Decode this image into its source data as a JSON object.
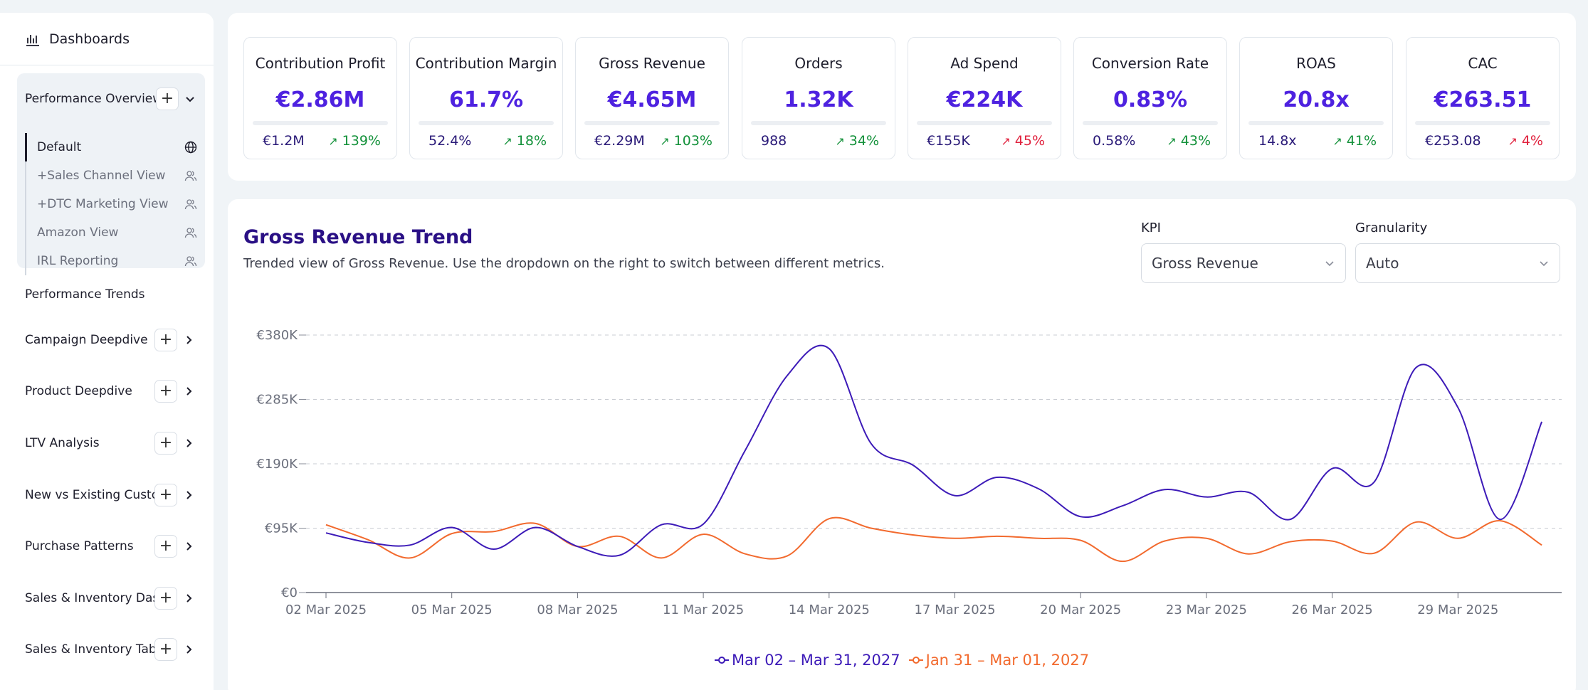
{
  "sidebar": {
    "title": "Dashboards",
    "group": {
      "label": "Performance Overview",
      "items": [
        {
          "label": "Default",
          "icon": "globe-icon"
        },
        {
          "label": "+Sales Channel View",
          "icon": "users-icon"
        },
        {
          "label": "+DTC Marketing View",
          "icon": "users-icon"
        },
        {
          "label": "Amazon View",
          "icon": "users-icon"
        },
        {
          "label": "IRL Reporting",
          "icon": "users-icon"
        }
      ]
    },
    "performance_trends": "Performance Trends",
    "nav": [
      {
        "label": "Campaign Deepdive"
      },
      {
        "label": "Product Deepdive"
      },
      {
        "label": "LTV Analysis"
      },
      {
        "label": "New vs Existing Customers"
      },
      {
        "label": "Purchase Patterns"
      },
      {
        "label": "Sales & Inventory Dashboard"
      },
      {
        "label": "Sales & Inventory Table"
      }
    ]
  },
  "kpis": [
    {
      "name": "Contribution Profit",
      "value": "€2.86M",
      "prev": "€1.2M",
      "change": "139%",
      "status": "good"
    },
    {
      "name": "Contribution Margin",
      "value": "61.7%",
      "prev": "52.4%",
      "change": "18%",
      "status": "good"
    },
    {
      "name": "Gross Revenue",
      "value": "€4.65M",
      "prev": "€2.29M",
      "change": "103%",
      "status": "good"
    },
    {
      "name": "Orders",
      "value": "1.32K",
      "prev": "988",
      "change": "34%",
      "status": "good"
    },
    {
      "name": "Ad Spend",
      "value": "€224K",
      "prev": "€155K",
      "change": "45%",
      "status": "bad"
    },
    {
      "name": "Conversion Rate",
      "value": "0.83%",
      "prev": "0.58%",
      "change": "43%",
      "status": "good"
    },
    {
      "name": "ROAS",
      "value": "20.8x",
      "prev": "14.8x",
      "change": "41%",
      "status": "good"
    },
    {
      "name": "CAC",
      "value": "€263.51",
      "prev": "€253.08",
      "change": "4%",
      "status": "bad"
    }
  ],
  "chart_panel": {
    "title": "Gross Revenue Trend",
    "subtitle": "Trended view of Gross Revenue. Use the dropdown on the right to switch between different metrics.",
    "kpi_label": "KPI",
    "kpi_value": "Gross Revenue",
    "granularity_label": "Granularity",
    "granularity_value": "Auto"
  },
  "colors": {
    "accent": "#4e22e0",
    "current_series": "#3d1bb8",
    "previous_series": "#f26a2e",
    "good": "#13913a",
    "bad": "#e0213d"
  },
  "chart_data": {
    "type": "line",
    "title": "Gross Revenue Trend",
    "ylim": [
      0,
      380000
    ],
    "yticks": [
      "€0",
      "€95K",
      "€190K",
      "€285K",
      "€380K"
    ],
    "ytick_values": [
      0,
      95000,
      190000,
      285000,
      380000
    ],
    "xtick_labels": [
      "02 Mar 2025",
      "05 Mar 2025",
      "08 Mar 2025",
      "11 Mar 2025",
      "14 Mar 2025",
      "17 Mar 2025",
      "20 Mar 2025",
      "23 Mar 2025",
      "26 Mar 2025",
      "29 Mar 2025"
    ],
    "grid": true,
    "legend_position": "bottom-center",
    "series": [
      {
        "name": "Mar 02 – Mar 31, 2027",
        "values": [
          88000,
          74000,
          70000,
          96000,
          64000,
          96000,
          68000,
          55000,
          100000,
          101000,
          210000,
          320000,
          360000,
          220000,
          188000,
          143000,
          170000,
          153000,
          112000,
          128000,
          152000,
          141000,
          148000,
          108000,
          183000,
          163000,
          332000,
          273000,
          108000,
          252000
        ]
      },
      {
        "name": "Jan 31 – Mar 01, 2027",
        "values": [
          100000,
          78000,
          51000,
          87000,
          90000,
          102000,
          68000,
          83000,
          51000,
          86000,
          57000,
          54000,
          109000,
          95000,
          85000,
          80000,
          83000,
          80000,
          77000,
          46000,
          76000,
          80000,
          57000,
          75000,
          76000,
          58000,
          104000,
          80000,
          106000,
          70000
        ]
      }
    ]
  }
}
